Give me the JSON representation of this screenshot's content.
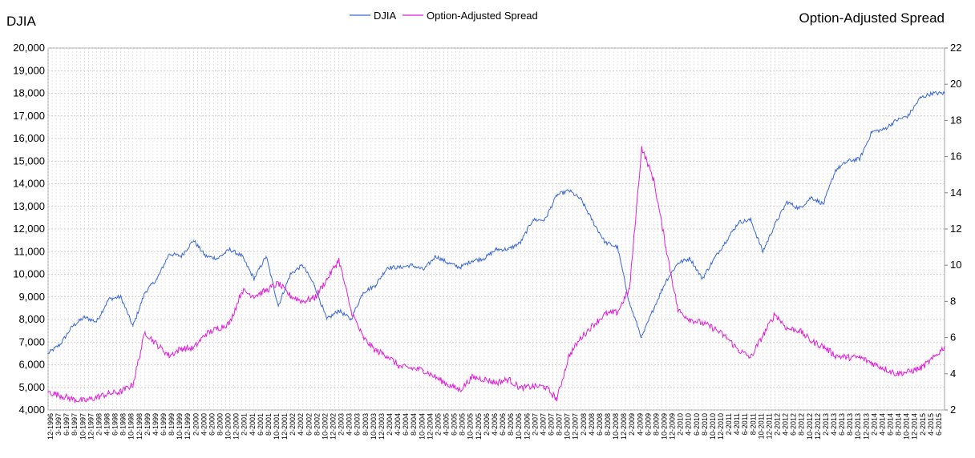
{
  "chart_data": {
    "type": "line",
    "left_axis_title": "DJIA",
    "right_axis_title": "Option-Adjusted Spread",
    "legend": [
      "DJIA",
      "Option-Adjusted Spread"
    ],
    "legend_position": "top-center",
    "grid": true,
    "y_left": {
      "lim": [
        4000,
        20000
      ],
      "ticks": [
        "4,000",
        "5,000",
        "6,000",
        "7,000",
        "8,000",
        "9,000",
        "10,000",
        "11,000",
        "12,000",
        "13,000",
        "14,000",
        "15,000",
        "16,000",
        "17,000",
        "18,000",
        "19,000",
        "20,000"
      ]
    },
    "y_right": {
      "lim": [
        2,
        22
      ],
      "ticks": [
        "2",
        "4",
        "6",
        "8",
        "10",
        "12",
        "14",
        "16",
        "18",
        "20",
        "22"
      ]
    },
    "x_tick_labels": [
      "12-1996",
      "3-1997",
      "6-1997",
      "8-1997",
      "10-1997",
      "12-1997",
      "2-1998",
      "4-1998",
      "6-1998",
      "8-1998",
      "10-1998",
      "12-1998",
      "2-1999",
      "4-1999",
      "6-1999",
      "8-1999",
      "10-1999",
      "12-1999",
      "2-2000",
      "4-2000",
      "6-2000",
      "8-2000",
      "10-2000",
      "12-2000",
      "2-2001",
      "4-2001",
      "6-2001",
      "8-2001",
      "10-2001",
      "12-2001",
      "2-2002",
      "4-2002",
      "6-2002",
      "8-2002",
      "10-2002",
      "12-2002",
      "2-2003",
      "4-2003",
      "6-2003",
      "8-2003",
      "10-2003",
      "12-2003",
      "2-2004",
      "4-2004",
      "6-2004",
      "8-2004",
      "10-2004",
      "12-2004",
      "2-2005",
      "4-2005",
      "6-2005",
      "8-2005",
      "10-2005",
      "12-2005",
      "2-2006",
      "4-2006",
      "6-2006",
      "8-2006",
      "10-2006",
      "12-2006",
      "2-2007",
      "4-2007",
      "6-2007",
      "8-2007",
      "10-2007",
      "12-2007",
      "2-2008",
      "4-2008",
      "6-2008",
      "8-2008",
      "10-2008",
      "12-2008",
      "2-2009",
      "4-2009",
      "6-2009",
      "8-2009",
      "10-2009",
      "12-2009",
      "2-2010",
      "4-2010",
      "6-2010",
      "8-2010",
      "10-2010",
      "12-2010",
      "2-2011",
      "4-2011",
      "6-2011",
      "8-2011",
      "10-2011",
      "12-2011",
      "2-2012",
      "4-2012",
      "6-2012",
      "8-2012",
      "10-2012",
      "12-2012",
      "2-2013",
      "4-2013",
      "6-2013",
      "8-2013",
      "10-2013",
      "12-2013",
      "2-2014",
      "4-2014",
      "6-2014",
      "8-2014",
      "10-2014",
      "12-2014",
      "2-2015",
      "4-2015",
      "6-2015"
    ],
    "x": [
      "1996-12",
      "1997-03",
      "1997-06",
      "1997-09",
      "1997-12",
      "1998-03",
      "1998-06",
      "1998-09",
      "1998-12",
      "1999-03",
      "1999-06",
      "1999-09",
      "1999-12",
      "2000-03",
      "2000-06",
      "2000-09",
      "2000-12",
      "2001-03",
      "2001-06",
      "2001-09",
      "2001-12",
      "2002-03",
      "2002-06",
      "2002-09",
      "2002-12",
      "2003-03",
      "2003-06",
      "2003-09",
      "2003-12",
      "2004-03",
      "2004-06",
      "2004-09",
      "2004-12",
      "2005-03",
      "2005-06",
      "2005-09",
      "2005-12",
      "2006-03",
      "2006-06",
      "2006-09",
      "2006-12",
      "2007-03",
      "2007-06",
      "2007-09",
      "2007-12",
      "2008-03",
      "2008-06",
      "2008-09",
      "2008-12",
      "2009-03",
      "2009-06",
      "2009-09",
      "2009-12",
      "2010-03",
      "2010-06",
      "2010-09",
      "2010-12",
      "2011-03",
      "2011-06",
      "2011-09",
      "2011-12",
      "2012-03",
      "2012-06",
      "2012-09",
      "2012-12",
      "2013-03",
      "2013-06",
      "2013-09",
      "2013-12",
      "2014-03",
      "2014-06",
      "2014-09",
      "2014-12",
      "2015-03",
      "2015-06"
    ],
    "series": [
      {
        "name": "DJIA",
        "axis": "left",
        "color": "#3a68d8",
        "values": [
          6500,
          6900,
          7700,
          8100,
          7900,
          8900,
          9000,
          7700,
          9200,
          9800,
          10900,
          10800,
          11500,
          10800,
          10700,
          11100,
          10800,
          9800,
          10800,
          8600,
          10000,
          10400,
          9500,
          8000,
          8400,
          8000,
          9200,
          9500,
          10300,
          10300,
          10400,
          10200,
          10800,
          10500,
          10300,
          10600,
          10700,
          11100,
          11100,
          11400,
          12400,
          12400,
          13500,
          13700,
          13300,
          12300,
          11400,
          11200,
          8700,
          7200,
          8500,
          9700,
          10500,
          10700,
          9800,
          10700,
          11500,
          12300,
          12400,
          11000,
          12200,
          13200,
          12900,
          13400,
          13100,
          14600,
          15000,
          15100,
          16300,
          16400,
          16800,
          17000,
          17800,
          18000,
          18000
        ]
      },
      {
        "name": "Option-Adjusted Spread",
        "axis": "right",
        "color": "#e020d8",
        "values": [
          3.0,
          2.8,
          2.6,
          2.5,
          2.7,
          2.9,
          3.0,
          3.4,
          6.3,
          5.6,
          5.0,
          5.4,
          5.4,
          6.2,
          6.5,
          6.8,
          8.6,
          8.3,
          8.6,
          9.0,
          8.3,
          8.0,
          8.2,
          9.2,
          10.3,
          7.5,
          6.0,
          5.3,
          5.0,
          4.4,
          4.3,
          4.2,
          3.8,
          3.4,
          3.1,
          3.8,
          3.7,
          3.5,
          3.7,
          3.2,
          3.3,
          3.3,
          2.6,
          5.0,
          6.0,
          6.7,
          7.3,
          7.4,
          8.7,
          16.5,
          14.7,
          11.0,
          7.5,
          7.0,
          6.8,
          6.5,
          6.0,
          5.3,
          4.9,
          6.1,
          7.3,
          6.5,
          6.4,
          5.8,
          5.5,
          5.0,
          4.9,
          4.9,
          4.6,
          4.3,
          4.0,
          4.1,
          4.3,
          4.8,
          5.5
        ]
      }
    ]
  }
}
